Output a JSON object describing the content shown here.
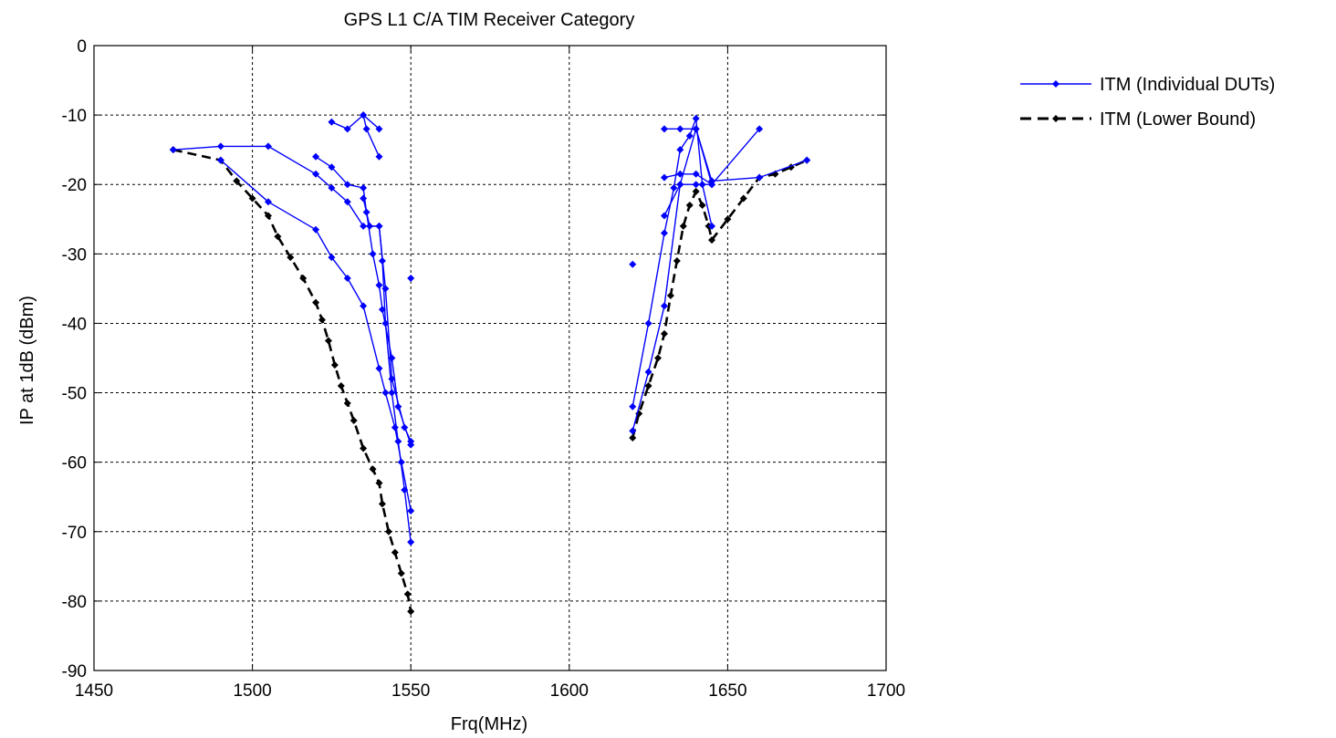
{
  "chart_data": {
    "type": "line",
    "title": "GPS L1 C/A TIM Receiver Category",
    "xlabel": "Frq(MHz)",
    "ylabel": "IP at 1dB (dBm)",
    "xlim": [
      1450,
      1700
    ],
    "ylim": [
      -90,
      0
    ],
    "xticks": [
      1450,
      1500,
      1550,
      1600,
      1650,
      1700
    ],
    "yticks": [
      0,
      -10,
      -20,
      -30,
      -40,
      -50,
      -60,
      -70,
      -80,
      -90
    ],
    "grid": true,
    "legend_position": "outside-top-right",
    "colors": {
      "individual": "#0000ff",
      "lower": "#000000"
    },
    "series": [
      {
        "name": "ITM (Individual DUTs)",
        "style": "solid",
        "color": "#0000ff",
        "segments": [
          [
            [
              1475,
              -15
            ],
            [
              1490,
              -14.5
            ],
            [
              1505,
              -14.5
            ],
            [
              1520,
              -18.5
            ],
            [
              1525,
              -20.5
            ],
            [
              1530,
              -22.5
            ],
            [
              1535,
              -26
            ],
            [
              1540,
              -26
            ],
            [
              1541,
              -31
            ],
            [
              1542,
              -40
            ],
            [
              1544,
              -50
            ],
            [
              1546,
              -57
            ],
            [
              1548,
              -64
            ],
            [
              1550,
              -71.5
            ]
          ],
          [
            [
              1490,
              -16.5
            ],
            [
              1505,
              -22.5
            ],
            [
              1520,
              -26.5
            ],
            [
              1525,
              -30.5
            ],
            [
              1530,
              -33.5
            ],
            [
              1535,
              -37.5
            ],
            [
              1540,
              -46.5
            ],
            [
              1542,
              -50
            ],
            [
              1545,
              -55
            ],
            [
              1547,
              -60
            ],
            [
              1550,
              -67
            ]
          ],
          [
            [
              1520,
              -16
            ],
            [
              1525,
              -17.5
            ],
            [
              1530,
              -20
            ],
            [
              1535,
              -20.5
            ],
            [
              1536,
              -24
            ],
            [
              1538,
              -30
            ],
            [
              1540,
              -34.5
            ],
            [
              1541,
              -38
            ],
            [
              1544,
              -45
            ],
            [
              1546,
              -52
            ],
            [
              1550,
              -57.5
            ]
          ],
          [
            [
              1525,
              -11
            ],
            [
              1530,
              -12
            ],
            [
              1535,
              -10
            ],
            [
              1536,
              -12
            ],
            [
              1540,
              -16
            ]
          ],
          [
            [
              1535,
              -10
            ],
            [
              1540,
              -12
            ]
          ],
          [
            [
              1535,
              -22
            ],
            [
              1537,
              -26
            ],
            [
              1540,
              -26
            ],
            [
              1542,
              -35
            ],
            [
              1544,
              -48
            ],
            [
              1548,
              -55
            ],
            [
              1550,
              -57
            ]
          ],
          [
            [
              1620,
              -52
            ],
            [
              1625,
              -40
            ],
            [
              1630,
              -27
            ],
            [
              1633,
              -20.5
            ],
            [
              1635,
              -15
            ],
            [
              1638,
              -13
            ],
            [
              1640,
              -10.5
            ],
            [
              1642,
              -20
            ],
            [
              1645,
              -26
            ]
          ],
          [
            [
              1620,
              -55.5
            ],
            [
              1625,
              -47
            ],
            [
              1630,
              -37.5
            ],
            [
              1635,
              -20
            ],
            [
              1640,
              -12
            ],
            [
              1645,
              -20
            ]
          ],
          [
            [
              1630,
              -12
            ],
            [
              1635,
              -12
            ],
            [
              1640,
              -12
            ],
            [
              1645,
              -19.5
            ],
            [
              1660,
              -19
            ],
            [
              1675,
              -16.5
            ]
          ],
          [
            [
              1630,
              -19
            ],
            [
              1635,
              -18.5
            ],
            [
              1640,
              -18.5
            ],
            [
              1645,
              -20
            ],
            [
              1660,
              -12
            ]
          ],
          [
            [
              1630,
              -24.5
            ],
            [
              1635,
              -20
            ],
            [
              1640,
              -20
            ],
            [
              1645,
              -20
            ]
          ],
          [
            [
              1620,
              -31.5
            ]
          ],
          [
            [
              1550,
              -33.5
            ]
          ]
        ]
      },
      {
        "name": "ITM (Lower Bound)",
        "style": "dashed",
        "color": "#000000",
        "segments": [
          [
            [
              1475,
              -15
            ],
            [
              1490,
              -16.5
            ],
            [
              1495,
              -19.5
            ],
            [
              1500,
              -22
            ],
            [
              1505,
              -24.5
            ],
            [
              1508,
              -27.5
            ],
            [
              1512,
              -30.5
            ],
            [
              1516,
              -33.5
            ],
            [
              1520,
              -37
            ],
            [
              1522,
              -39.5
            ],
            [
              1524,
              -42.5
            ],
            [
              1526,
              -46
            ],
            [
              1528,
              -49
            ],
            [
              1530,
              -51.5
            ],
            [
              1532,
              -54
            ],
            [
              1535,
              -58
            ],
            [
              1538,
              -61
            ],
            [
              1540,
              -63
            ],
            [
              1541,
              -66
            ],
            [
              1543,
              -70
            ],
            [
              1545,
              -73
            ],
            [
              1547,
              -76
            ],
            [
              1549,
              -79
            ],
            [
              1550,
              -81.5
            ]
          ],
          [
            [
              1620,
              -56.5
            ],
            [
              1622,
              -53
            ],
            [
              1625,
              -49
            ],
            [
              1628,
              -45
            ],
            [
              1630,
              -41.5
            ],
            [
              1632,
              -36
            ],
            [
              1634,
              -31
            ],
            [
              1636,
              -26
            ],
            [
              1638,
              -23
            ],
            [
              1640,
              -21
            ],
            [
              1642,
              -23
            ],
            [
              1644,
              -26
            ],
            [
              1645,
              -28
            ],
            [
              1650,
              -25
            ],
            [
              1655,
              -22
            ],
            [
              1660,
              -19
            ],
            [
              1665,
              -18.5
            ],
            [
              1670,
              -17.5
            ],
            [
              1675,
              -16.5
            ]
          ]
        ]
      }
    ]
  }
}
